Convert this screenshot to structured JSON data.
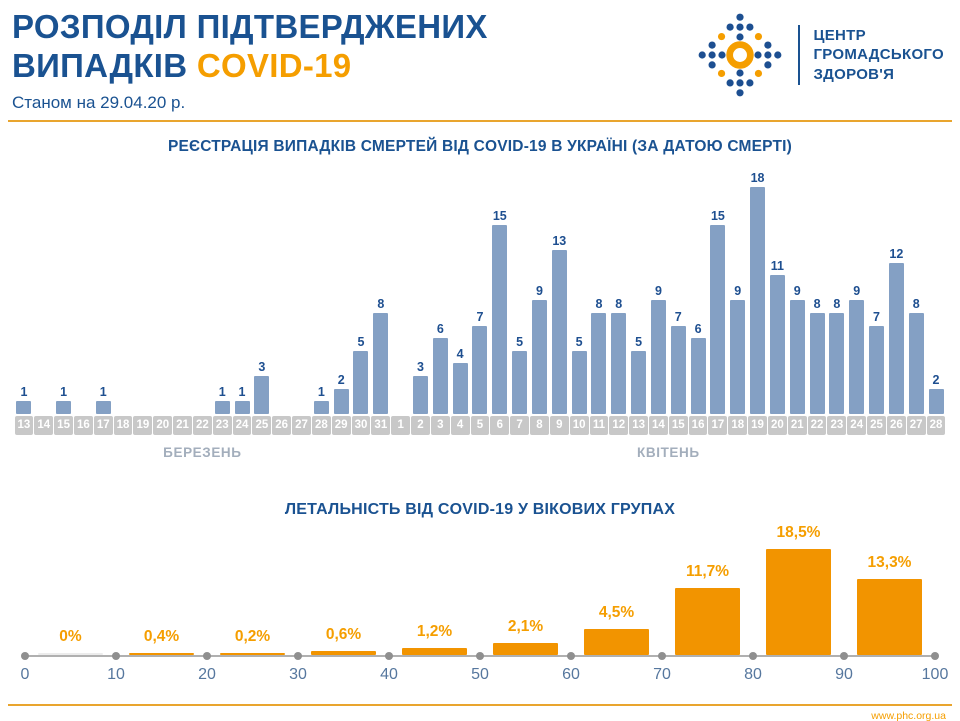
{
  "header": {
    "title_line1": "РОЗПОДІЛ ПІДТВЕРДЖЕНИХ",
    "title_line2": "ВИПАДКІВ",
    "title_accent": "COVID-19",
    "subtitle": "Станом на 29.04.20 р.",
    "logo": {
      "line1": "ЦЕНТР",
      "line2": "ГРОМАДСЬКОГО",
      "line3": "ЗДОРОВ'Я"
    }
  },
  "footer": {
    "url": "www.phc.org.ua"
  },
  "colors": {
    "navy": "#1a5291",
    "orange": "#f59e00",
    "bar_blue": "#84a0c4",
    "bar_orange": "#f29400",
    "rule_orange": "#e9a52e",
    "axis_strip_gray": "#c8c8c8"
  },
  "chart_data": [
    {
      "type": "bar",
      "title": "РЕЄСТРАЦІЯ ВИПАДКІВ СМЕРТЕЙ ВІД COVID-19 В УКРАЇНІ (ЗА ДАТОЮ СМЕРТІ)",
      "x_groups": [
        {
          "label": "БЕРЕЗЕНЬ",
          "count": 19
        },
        {
          "label": "КВІТЕНЬ",
          "count": 28
        }
      ],
      "categories": [
        "13",
        "14",
        "15",
        "16",
        "17",
        "18",
        "19",
        "20",
        "21",
        "22",
        "23",
        "24",
        "25",
        "26",
        "27",
        "28",
        "29",
        "30",
        "31",
        "1",
        "2",
        "3",
        "4",
        "5",
        "6",
        "7",
        "8",
        "9",
        "10",
        "11",
        "12",
        "13",
        "14",
        "15",
        "16",
        "17",
        "18",
        "19",
        "20",
        "21",
        "22",
        "23",
        "24",
        "25",
        "26",
        "27",
        "28"
      ],
      "values": [
        1,
        0,
        1,
        0,
        1,
        0,
        0,
        0,
        0,
        0,
        1,
        1,
        3,
        0,
        0,
        1,
        2,
        5,
        8,
        0,
        3,
        6,
        4,
        7,
        15,
        5,
        9,
        13,
        5,
        8,
        8,
        5,
        9,
        7,
        6,
        15,
        9,
        18,
        11,
        9,
        8,
        8,
        9,
        7,
        12,
        8,
        2
      ],
      "ylim": [
        0,
        18
      ],
      "legend": "none",
      "grid": false
    },
    {
      "type": "bar",
      "title": "ЛЕТАЛЬНІСТЬ ВІД COVID-19 У ВІКОВИХ ГРУПАХ",
      "tick_labels": [
        "0",
        "10",
        "20",
        "30",
        "40",
        "50",
        "60",
        "70",
        "80",
        "90",
        "100"
      ],
      "age_ranges": [
        "0-10",
        "10-20",
        "20-30",
        "30-40",
        "40-50",
        "50-60",
        "60-70",
        "70-80",
        "80-90",
        "90-100"
      ],
      "values": [
        0,
        0.4,
        0.2,
        0.6,
        1.2,
        2.1,
        4.5,
        11.7,
        18.5,
        13.3
      ],
      "value_labels": [
        "0%",
        "0,4%",
        "0,2%",
        "0,6%",
        "1,2%",
        "2,1%",
        "4,5%",
        "11,7%",
        "18,5%",
        "13,3%"
      ],
      "ylim": [
        0,
        20
      ],
      "legend": "none",
      "grid": false
    }
  ]
}
